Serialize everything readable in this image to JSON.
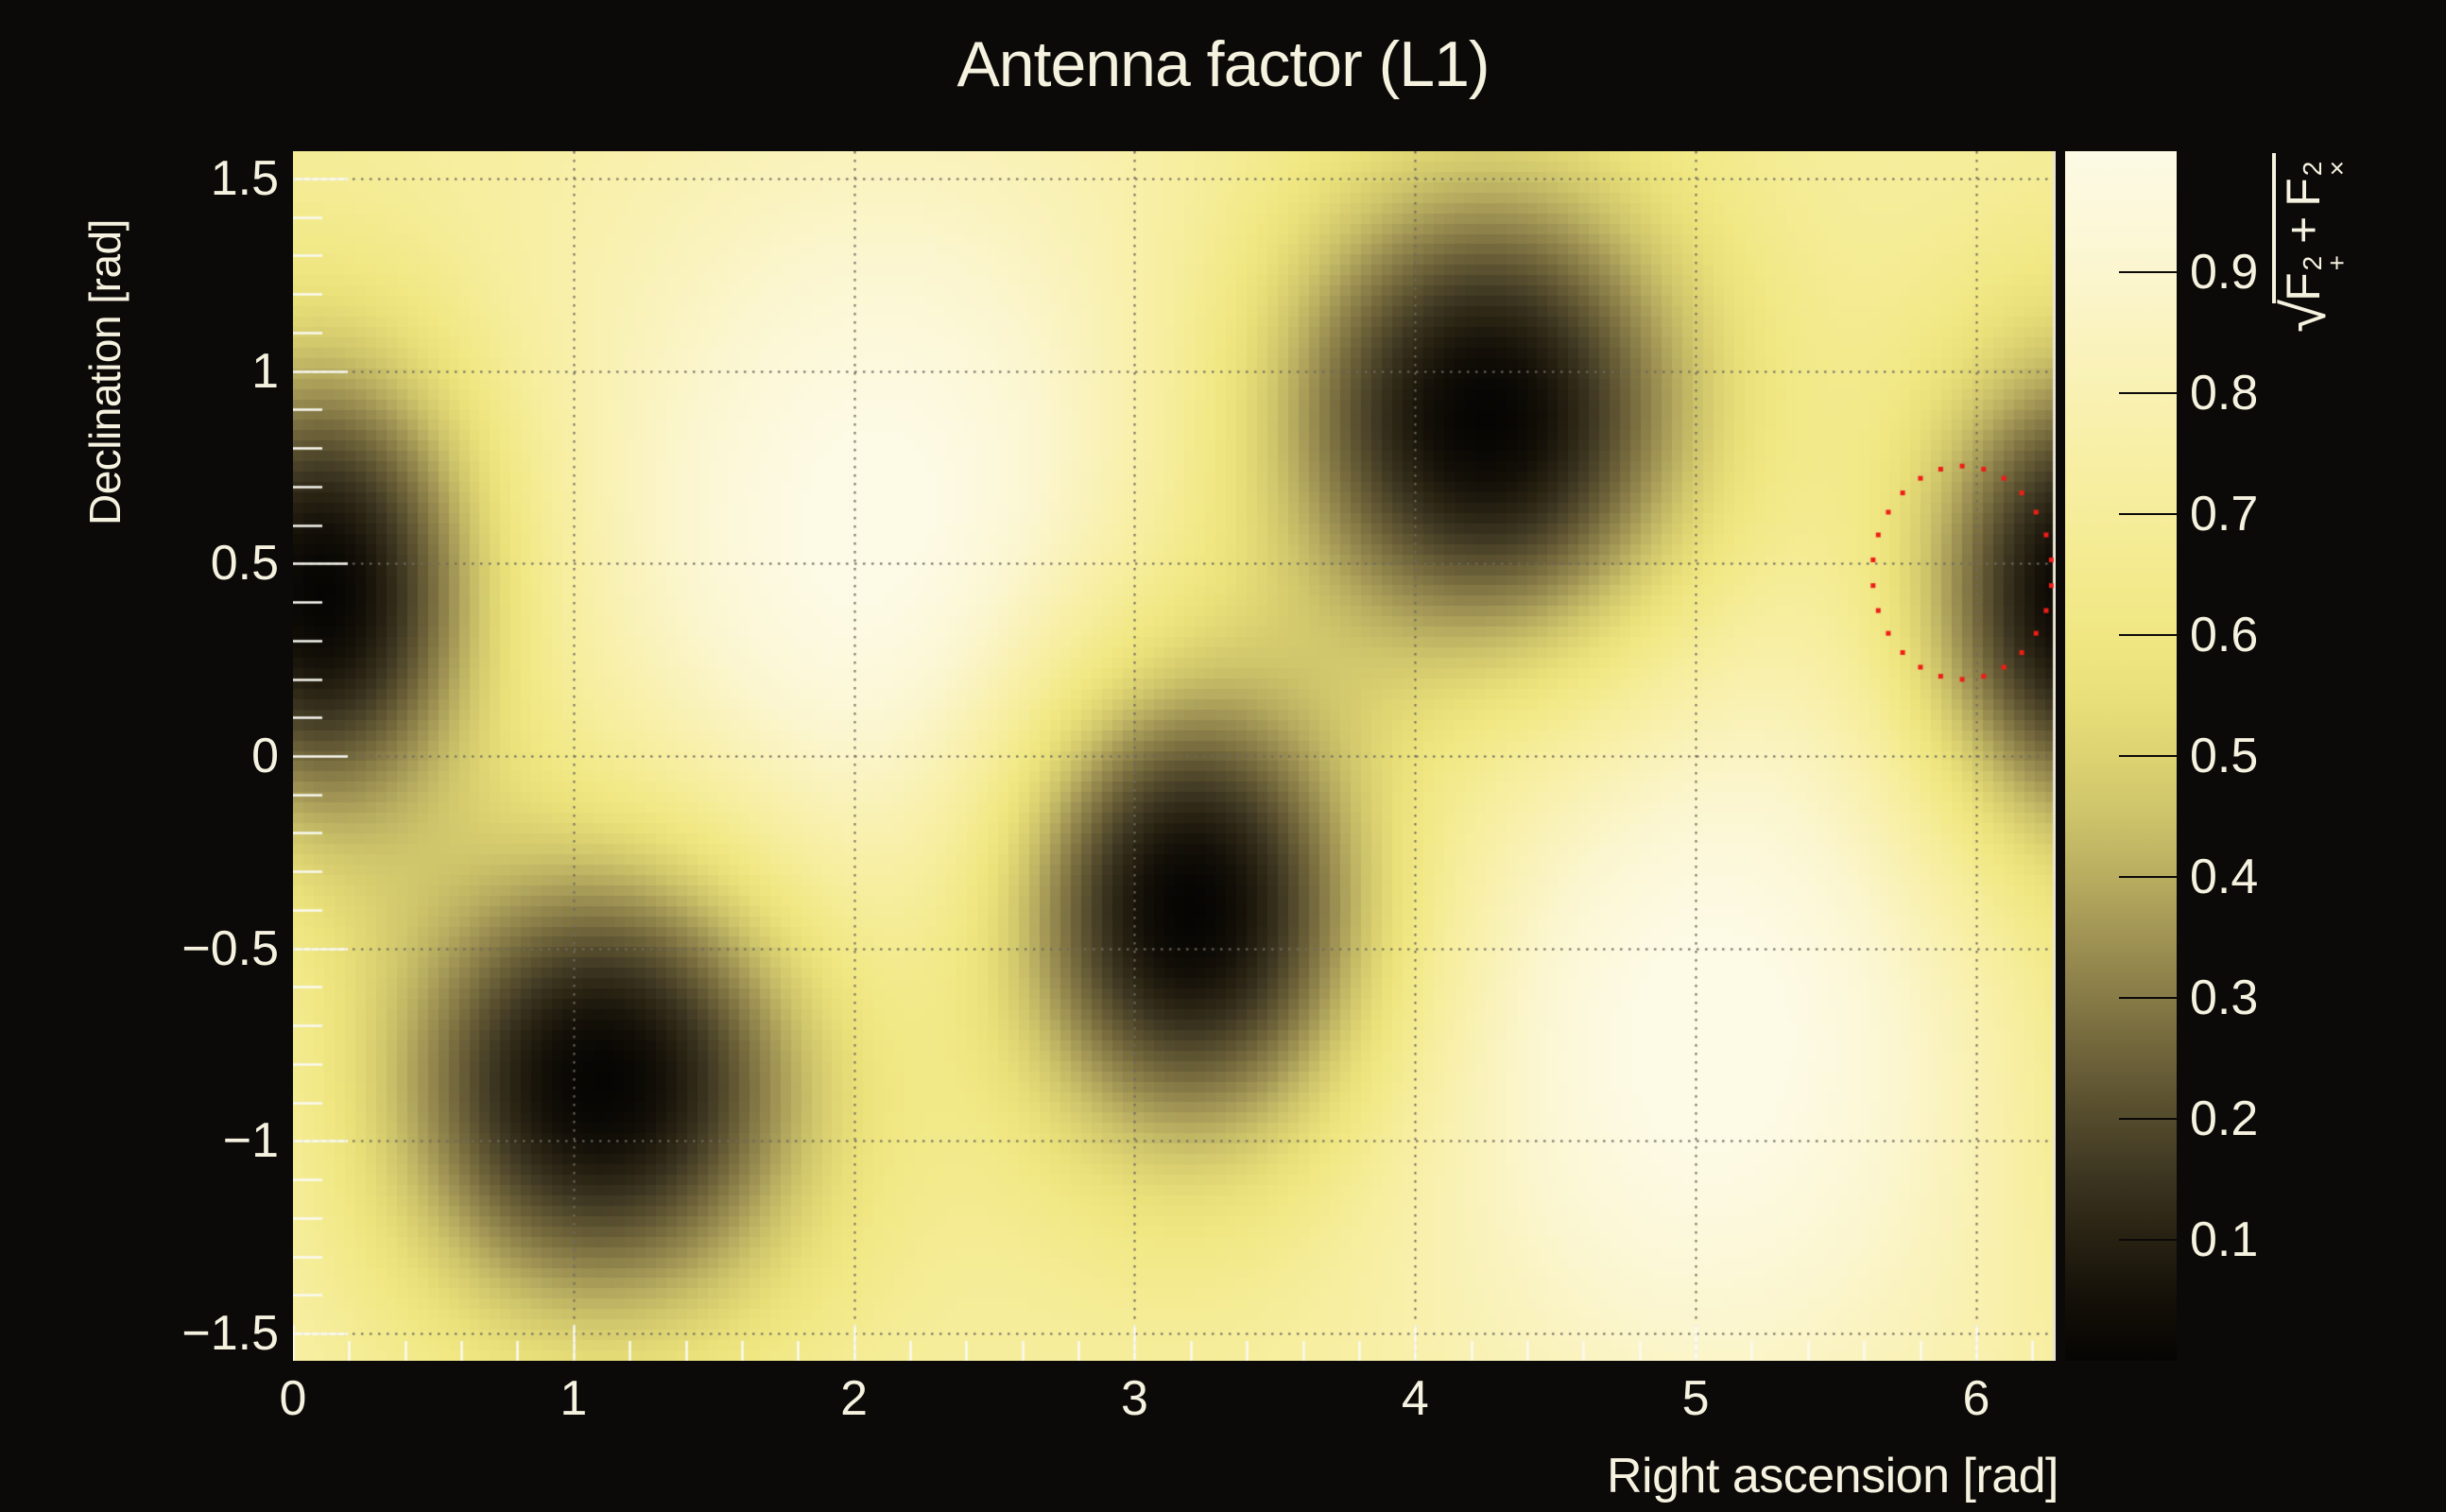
{
  "page": {
    "background_color": "#0b0a08",
    "text_color": "#f6f2e0"
  },
  "chart_data": {
    "type": "heatmap",
    "title": "Antenna factor (L1)",
    "xlabel": "Right ascension [rad]",
    "ylabel": "Declination [rad]",
    "colorbar_label": "√(F₊² + F×²)",
    "colorbar_label_parts": {
      "radical": "√",
      "term1_base": "F",
      "term1_sup": "2",
      "term1_sub": "+",
      "operator": "+",
      "term2_base": "F",
      "term2_sup": "2",
      "term2_sub": "×"
    },
    "xlim": [
      0,
      6.28319
    ],
    "ylim": [
      -1.5708,
      1.5708
    ],
    "zlim": [
      0,
      1
    ],
    "grid": "dotted",
    "x_ticks": [
      {
        "value": 0,
        "label": "0"
      },
      {
        "value": 1,
        "label": "1"
      },
      {
        "value": 2,
        "label": "2"
      },
      {
        "value": 3,
        "label": "3"
      },
      {
        "value": 4,
        "label": "4"
      },
      {
        "value": 5,
        "label": "5"
      },
      {
        "value": 6,
        "label": "6"
      }
    ],
    "y_ticks": [
      {
        "value": 1.5,
        "label": "1.5"
      },
      {
        "value": 1.0,
        "label": "1"
      },
      {
        "value": 0.5,
        "label": "0.5"
      },
      {
        "value": 0.0,
        "label": "0"
      },
      {
        "value": -0.5,
        "label": "−0.5"
      },
      {
        "value": -1.0,
        "label": "−1"
      },
      {
        "value": -1.5,
        "label": "−1.5"
      }
    ],
    "colorbar_ticks": [
      {
        "value": 0.9,
        "label": "0.9"
      },
      {
        "value": 0.8,
        "label": "0.8"
      },
      {
        "value": 0.7,
        "label": "0.7"
      },
      {
        "value": 0.6,
        "label": "0.6"
      },
      {
        "value": 0.5,
        "label": "0.5"
      },
      {
        "value": 0.4,
        "label": "0.4"
      },
      {
        "value": 0.3,
        "label": "0.3"
      },
      {
        "value": 0.2,
        "label": "0.2"
      },
      {
        "value": 0.1,
        "label": "0.1"
      }
    ],
    "x_minor_step": 0.2,
    "y_minor_step": 0.1,
    "colormap": [
      [
        0.0,
        "#060503"
      ],
      [
        0.05,
        "#141008"
      ],
      [
        0.1,
        "#272112"
      ],
      [
        0.15,
        "#3b3420"
      ],
      [
        0.2,
        "#544b2d"
      ],
      [
        0.25,
        "#6d6239"
      ],
      [
        0.3,
        "#877b47"
      ],
      [
        0.35,
        "#a09354"
      ],
      [
        0.4,
        "#b8ad60"
      ],
      [
        0.45,
        "#cdc36a"
      ],
      [
        0.5,
        "#ddd372"
      ],
      [
        0.55,
        "#e9e07a"
      ],
      [
        0.6,
        "#f0e783"
      ],
      [
        0.65,
        "#f3ea8e"
      ],
      [
        0.7,
        "#f6ed9b"
      ],
      [
        0.75,
        "#f8efa6"
      ],
      [
        0.8,
        "#f9f1b2"
      ],
      [
        0.85,
        "#faf3c0"
      ],
      [
        0.9,
        "#fbf6cf"
      ],
      [
        0.95,
        "#fcf8da"
      ],
      [
        1.0,
        "#fdfae6"
      ]
    ],
    "bins": {
      "nx": 170,
      "ny": 117
    },
    "field_model": {
      "ra_wraps": true,
      "baseline_floor": 0.72,
      "maxima_amplitude": 0.3,
      "bright_maxima": [
        {
          "ra": 2.1,
          "dec": 0.55,
          "sigma": 0.75
        },
        {
          "ra": 5.05,
          "dec": -0.72,
          "sigma": 0.75
        }
      ],
      "dark_nulls": [
        {
          "ra": 0.1,
          "dec": 0.42,
          "sigma_ra": 0.42,
          "sigma_dec": 0.46
        },
        {
          "ra": 1.1,
          "dec": -0.85,
          "sigma_ra": 0.56,
          "sigma_dec": 0.44
        },
        {
          "ra": 3.2,
          "dec": -0.4,
          "sigma_ra": 0.48,
          "sigma_dec": 0.46
        },
        {
          "ra": 4.25,
          "dec": 0.88,
          "sigma_ra": 0.56,
          "sigma_dec": 0.46
        }
      ]
    },
    "marker_circle": {
      "ra": 5.95,
      "dec": 0.476,
      "radius_ra": 0.32,
      "radius_dec": 0.277,
      "style": "dotted",
      "dot_count": 26,
      "dot_size": 5,
      "color": "#ee1d17"
    },
    "grid_color": "#6f6b60",
    "tick_color": "#fafaf2",
    "frame_right_color": "#e9e5d3"
  }
}
